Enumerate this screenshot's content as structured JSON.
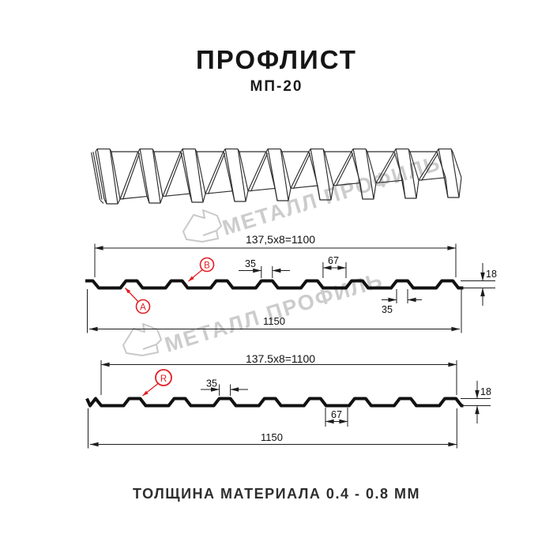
{
  "page": {
    "title": "ПРОФЛИСТ",
    "subtitle": "МП-20",
    "footer": "ТОЛЩИНА МАТЕРИАЛА 0.4 - 0.8 ММ"
  },
  "watermark": {
    "text": "МЕТАЛЛ ПРОФИЛЬ"
  },
  "profile1": {
    "pitch_dim": "137,5x8=1100",
    "rib_top_width": "35",
    "valley_width": "67",
    "height": "18",
    "rib_bottom_width": "35",
    "total_width": "1150",
    "label_a": "A",
    "label_b": "B"
  },
  "profile2": {
    "pitch_dim": "137.5x8=1100",
    "rib_top_width": "35",
    "height": "18",
    "valley_width": "67",
    "total_width": "1150",
    "label_r": "R"
  },
  "colors": {
    "accent_red": "#e31e24",
    "drawing_line": "#1d1d1d",
    "watermark_gray": "#cccccc"
  }
}
